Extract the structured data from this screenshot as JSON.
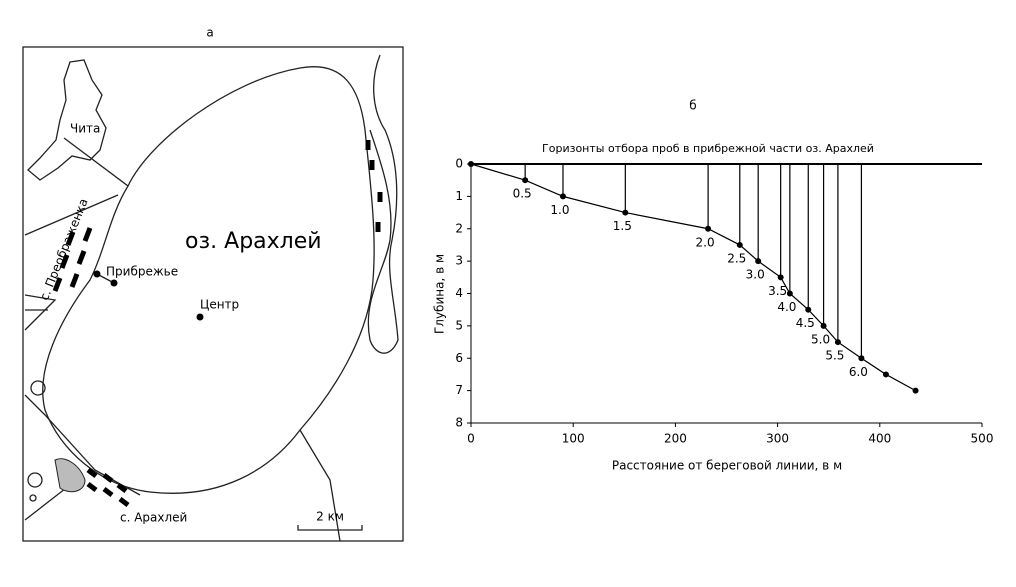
{
  "map": {
    "panel_label": "а",
    "labels": [
      "Чита",
      "с. Преображенка",
      "оз. Арахлей",
      "Прибрежье",
      "Центр",
      "с. Арахлей"
    ],
    "scale_label": "2 км"
  },
  "chart_data": {
    "type": "line",
    "panel_label": "б",
    "title": "Горизонты отбора проб в прибрежной части оз. Арахлей",
    "xlabel": "Расстояние от береговой линии, в м",
    "ylabel": "Глубина, в м",
    "x": [
      0,
      53,
      90,
      151,
      232,
      263,
      281,
      303,
      312,
      330,
      345,
      359,
      382,
      406,
      435
    ],
    "y": [
      0,
      0.5,
      1.0,
      1.5,
      2.0,
      2.5,
      3.0,
      3.5,
      4.0,
      4.5,
      5.0,
      5.5,
      6.0,
      6.5,
      7.0
    ],
    "value_labels": [
      null,
      "0.5",
      "1.0",
      "1.5",
      "2.0",
      "2.5",
      "3.0",
      "3.5",
      "4.0",
      "4.5",
      "5.0",
      "5.5",
      "6.0",
      null,
      null
    ],
    "color": "#000000",
    "xlim": [
      0,
      500
    ],
    "ylim": [
      0,
      8
    ],
    "y_inverted": true,
    "xticks": [
      0,
      100,
      200,
      300,
      400,
      500
    ],
    "yticks": [
      0,
      1,
      2,
      3,
      4,
      5,
      6,
      7,
      8
    ]
  }
}
